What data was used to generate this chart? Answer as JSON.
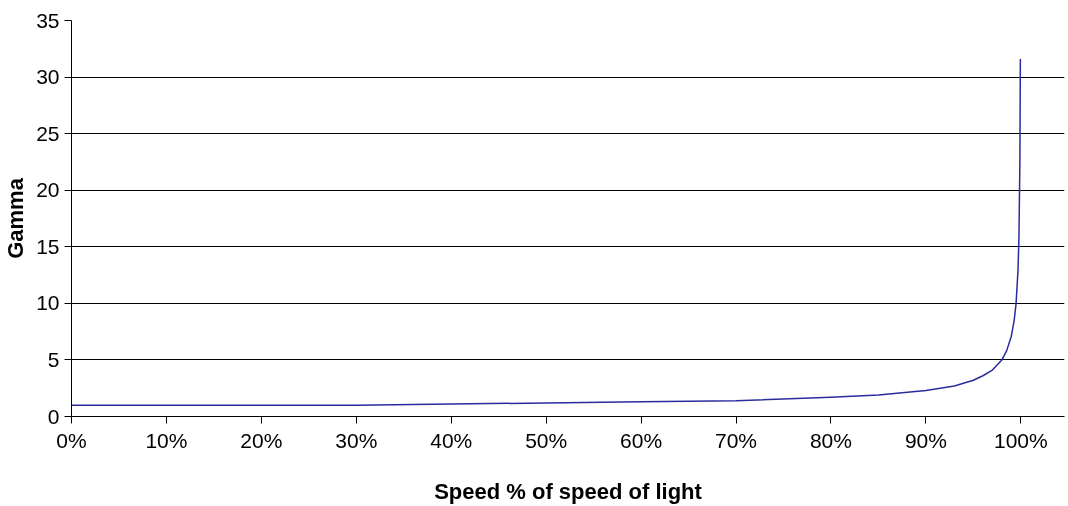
{
  "chart_data": {
    "type": "line",
    "xlabel": "Speed % of speed of light",
    "ylabel": "Gamma",
    "x": [
      0,
      10,
      20,
      30,
      40,
      50,
      60,
      70,
      80,
      85,
      90,
      93,
      95,
      96,
      97,
      98,
      98.5,
      99,
      99.3,
      99.5,
      99.7,
      99.8,
      99.9,
      99.95
    ],
    "series": [
      {
        "color": "#2b2ba0",
        "values": [
          1,
          1,
          1,
          1,
          1.1,
          1.2,
          1.3,
          1.4,
          1.7,
          1.9,
          2.3,
          2.7,
          3.2,
          3.6,
          4.1,
          5,
          5.8,
          7.1,
          8.5,
          10,
          12.9,
          15.8,
          22.4,
          31.6
        ]
      }
    ],
    "xlim": [
      0,
      104.6
    ],
    "xticks": [
      {
        "value": 0,
        "label": "0%"
      },
      {
        "value": 10,
        "label": "10%"
      },
      {
        "value": 20,
        "label": "20%"
      },
      {
        "value": 30,
        "label": "30%"
      },
      {
        "value": 40,
        "label": "40%"
      },
      {
        "value": 50,
        "label": "50%"
      },
      {
        "value": 60,
        "label": "60%"
      },
      {
        "value": 70,
        "label": "70%"
      },
      {
        "value": 80,
        "label": "80%"
      },
      {
        "value": 90,
        "label": "90%"
      },
      {
        "value": 100,
        "label": "100%"
      }
    ],
    "ylim": [
      0,
      35
    ],
    "yticks": [
      0,
      5,
      10,
      15,
      20,
      25,
      30,
      35
    ],
    "grid": "y",
    "marker": "none",
    "line_style": "solid"
  }
}
